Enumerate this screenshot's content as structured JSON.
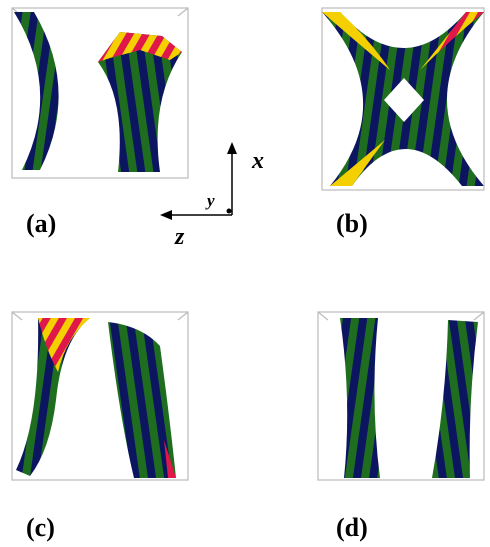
{
  "panels": [
    {
      "label": "(a)"
    },
    {
      "label": "(b)"
    },
    {
      "label": "(c)"
    },
    {
      "label": "(d)"
    }
  ],
  "axes": {
    "x": "x",
    "y": "y",
    "z": "z"
  }
}
